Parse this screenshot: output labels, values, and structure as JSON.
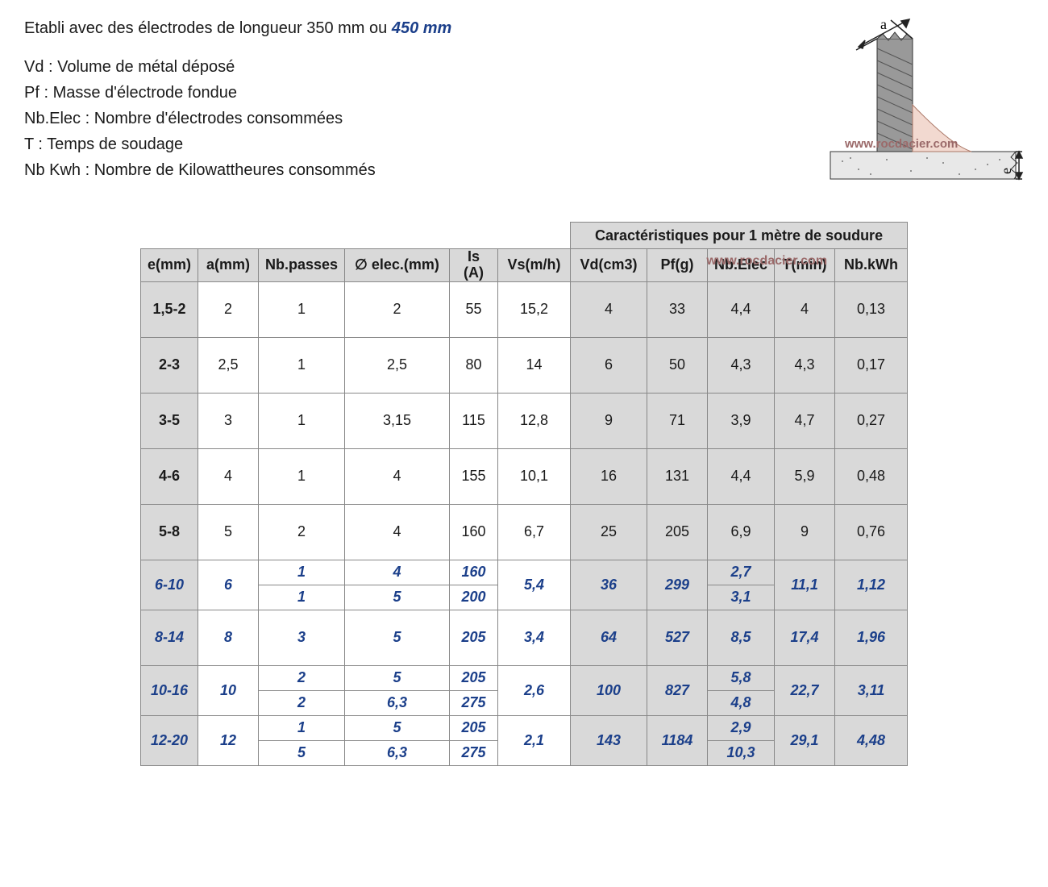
{
  "title_prefix": "Etabli avec des électrodes de longueur 350 mm  ou ",
  "title_emph": "450 mm",
  "defs": {
    "vd": "Vd : Volume de métal déposé",
    "pf": "Pf : Masse d'électrode fondue",
    "nbelec": "Nb.Elec : Nombre d'électrodes consommées",
    "t": "T : Temps de soudage",
    "nbkwh": "Nb Kwh : Nombre de Kilowattheures consommés"
  },
  "diagram": {
    "label_a": "a",
    "label_e": "e",
    "watermark": "www.rocdacier.com"
  },
  "table": {
    "group_header": "Caractéristiques pour 1 mètre de soudure",
    "watermark": "www.rocdacier.com",
    "columns": {
      "e": "e(mm)",
      "a": "a(mm)",
      "np": "Nb.passes",
      "diam": "∅ elec.(mm)",
      "is": "Is (A)",
      "vs": "Vs(m/h)",
      "vd": "Vd(cm3)",
      "pf": "Pf(g)",
      "ne": "Nb.Elec",
      "t": "T(min)",
      "kwh": "Nb.kWh"
    },
    "col_widths": {
      "e": 70,
      "a": 75,
      "np": 100,
      "diam": 130,
      "is": 60,
      "vs": 90,
      "vd": 95,
      "pf": 75,
      "ne": 80,
      "t": 75,
      "kwh": 90
    },
    "rows_single": [
      {
        "e": "1,5-2",
        "a": "2",
        "np": "1",
        "diam": "2",
        "is": "55",
        "vs": "15,2",
        "vd": "4",
        "pf": "33",
        "ne": "4,4",
        "t": "4",
        "kwh": "0,13"
      },
      {
        "e": "2-3",
        "a": "2,5",
        "np": "1",
        "diam": "2,5",
        "is": "80",
        "vs": "14",
        "vd": "6",
        "pf": "50",
        "ne": "4,3",
        "t": "4,3",
        "kwh": "0,17"
      },
      {
        "e": "3-5",
        "a": "3",
        "np": "1",
        "diam": "3,15",
        "is": "115",
        "vs": "12,8",
        "vd": "9",
        "pf": "71",
        "ne": "3,9",
        "t": "4,7",
        "kwh": "0,27"
      },
      {
        "e": "4-6",
        "a": "4",
        "np": "1",
        "diam": "4",
        "is": "155",
        "vs": "10,1",
        "vd": "16",
        "pf": "131",
        "ne": "4,4",
        "t": "5,9",
        "kwh": "0,48"
      },
      {
        "e": "5-8",
        "a": "5",
        "np": "2",
        "diam": "4",
        "is": "160",
        "vs": "6,7",
        "vd": "25",
        "pf": "205",
        "ne": "6,9",
        "t": "9",
        "kwh": "0,76"
      }
    ],
    "rows_split": [
      {
        "e": "6-10",
        "a": "6",
        "np": [
          "1",
          "1"
        ],
        "diam": [
          "4",
          "5"
        ],
        "is": [
          "160",
          "200"
        ],
        "vs": "5,4",
        "vd": "36",
        "pf": "299",
        "ne": [
          "2,7",
          "3,1"
        ],
        "t": "11,1",
        "kwh": "1,12",
        "single": false
      },
      {
        "e": "8-14",
        "a": "8",
        "np": [
          "3"
        ],
        "diam": [
          "5"
        ],
        "is": [
          "205"
        ],
        "vs": "3,4",
        "vd": "64",
        "pf": "527",
        "ne": [
          "8,5"
        ],
        "t": "17,4",
        "kwh": "1,96",
        "single": true
      },
      {
        "e": "10-16",
        "a": "10",
        "np": [
          "2",
          "2"
        ],
        "diam": [
          "5",
          "6,3"
        ],
        "is": [
          "205",
          "275"
        ],
        "vs": "2,6",
        "vd": "100",
        "pf": "827",
        "ne": [
          "5,8",
          "4,8"
        ],
        "t": "22,7",
        "kwh": "3,11",
        "single": false
      },
      {
        "e": "12-20",
        "a": "12",
        "np": [
          "1",
          "5"
        ],
        "diam": [
          "5",
          "6,3"
        ],
        "is": [
          "205",
          "275"
        ],
        "vs": "2,1",
        "vd": "143",
        "pf": "1184",
        "ne": [
          "2,9",
          "10,3"
        ],
        "t": "29,1",
        "kwh": "4,48",
        "single": false
      }
    ]
  },
  "colors": {
    "emph": "#1b3f8a",
    "header_bg": "#d9d9d9",
    "border": "#888888",
    "watermark": "#9b6a6a",
    "text": "#1a1a1a"
  },
  "fonts": {
    "body_pt": 15,
    "table_pt": 14
  }
}
